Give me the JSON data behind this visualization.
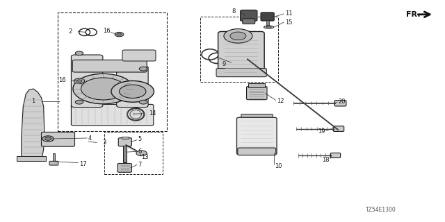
{
  "bg_color": "#ffffff",
  "diagram_code": "TZ54E1300",
  "line_color": "#1a1a1a",
  "text_color": "#1a1a1a",
  "leader_color": "#333333",
  "fs_label": 6.0,
  "fs_code": 5.5,
  "labels": {
    "1": [
      0.092,
      0.545,
      0.135,
      0.545
    ],
    "2": [
      0.175,
      0.855,
      0.215,
      0.845
    ],
    "3": [
      0.215,
      0.355,
      0.195,
      0.36
    ],
    "4": [
      0.195,
      0.375,
      0.175,
      0.38
    ],
    "5": [
      0.31,
      0.37,
      0.295,
      0.355
    ],
    "6": [
      0.31,
      0.315,
      0.297,
      0.315
    ],
    "7": [
      0.31,
      0.255,
      0.297,
      0.26
    ],
    "8": [
      0.54,
      0.945,
      0.555,
      0.925
    ],
    "9": [
      0.52,
      0.715,
      0.535,
      0.73
    ],
    "10": [
      0.615,
      0.255,
      0.595,
      0.27
    ],
    "11": [
      0.635,
      0.935,
      0.615,
      0.925
    ],
    "12": [
      0.62,
      0.545,
      0.6,
      0.555
    ],
    "13": [
      0.33,
      0.295,
      0.315,
      0.31
    ],
    "14": [
      0.32,
      0.485,
      0.305,
      0.485
    ],
    "15": [
      0.64,
      0.9,
      0.618,
      0.9
    ],
    "16a": [
      0.245,
      0.85,
      0.27,
      0.84
    ],
    "16b": [
      0.165,
      0.635,
      0.185,
      0.625
    ],
    "17": [
      0.175,
      0.265,
      0.163,
      0.275
    ],
    "18": [
      0.74,
      0.28,
      0.72,
      0.295
    ],
    "19": [
      0.73,
      0.405,
      0.71,
      0.415
    ],
    "20": [
      0.755,
      0.535,
      0.735,
      0.52
    ]
  }
}
